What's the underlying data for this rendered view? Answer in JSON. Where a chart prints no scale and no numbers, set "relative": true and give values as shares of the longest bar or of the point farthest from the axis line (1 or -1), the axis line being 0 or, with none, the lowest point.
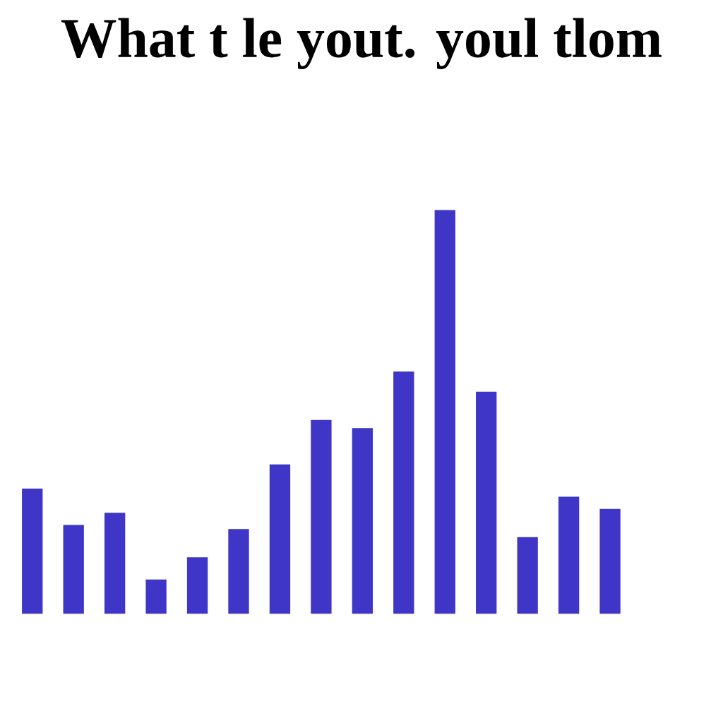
{
  "chart_data": {
    "type": "bar",
    "title": "What t le yout. youl tlom",
    "relative": true,
    "color": "#3f36c8",
    "categories": [
      null,
      null,
      null,
      null,
      null,
      null,
      null,
      null,
      null,
      null,
      null,
      null,
      null,
      null,
      null
    ],
    "values": [
      0.31,
      0.22,
      0.25,
      0.085,
      0.14,
      0.21,
      0.37,
      0.48,
      0.46,
      0.6,
      1,
      0.55,
      0.19,
      0.29,
      0.26
    ]
  }
}
